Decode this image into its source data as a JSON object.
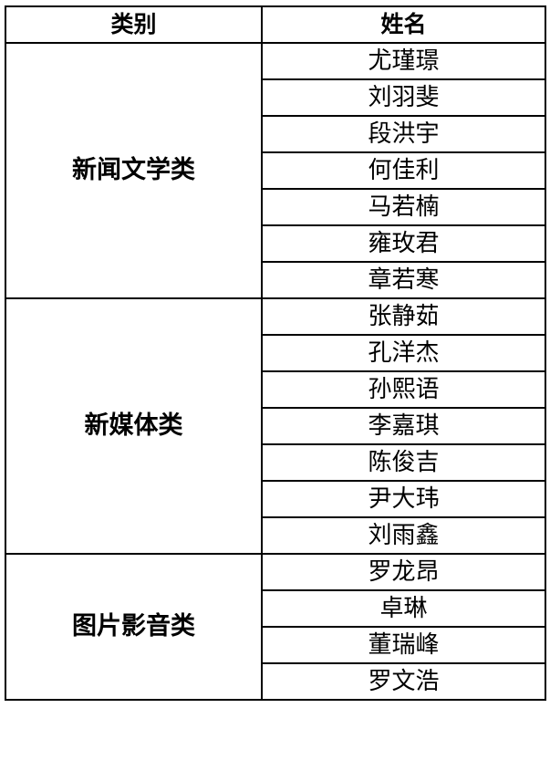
{
  "headers": [
    "类别",
    "姓名"
  ],
  "groups": [
    {
      "category": "新闻文学类",
      "names": [
        "尤瑾璟",
        "刘羽斐",
        "段洪宇",
        "何佳利",
        "马若楠",
        "雍玫君",
        "章若寒"
      ]
    },
    {
      "category": "新媒体类",
      "names": [
        "张静茹",
        "孔洋杰",
        "孙熙语",
        "李嘉琪",
        "陈俊吉",
        "尹大玮",
        "刘雨鑫"
      ]
    },
    {
      "category": "图片影音类",
      "names": [
        "罗龙昂",
        "卓琳",
        "董瑞峰",
        "罗文浩"
      ]
    }
  ]
}
